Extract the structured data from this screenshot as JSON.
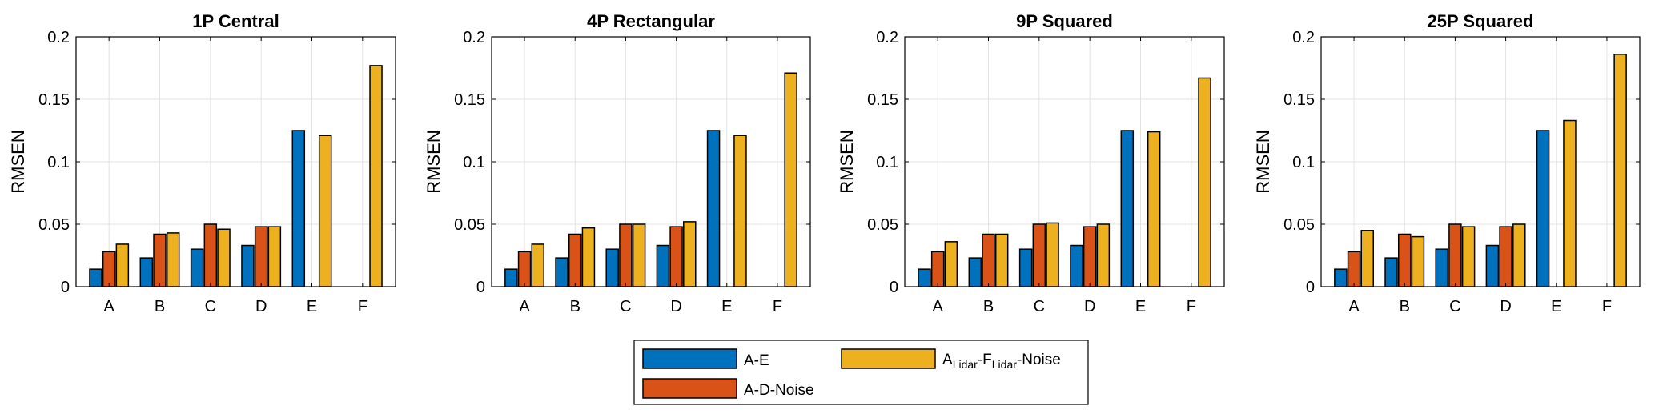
{
  "legend": {
    "label_1": "A-E",
    "label_2": "A-D-Noise",
    "label_3_main_a": "A",
    "label_3_sub_a": "Lidar",
    "label_3_main_b": "-F",
    "label_3_sub_b": "Lidar",
    "label_3_main_c": "-Noise"
  },
  "chart_data": [
    {
      "type": "bar",
      "title": "1P Central",
      "categories": [
        "A",
        "B",
        "C",
        "D",
        "E",
        "F"
      ],
      "xlabel": "",
      "ylabel": "RMSEN",
      "ylim": [
        0,
        0.2
      ],
      "yticks": [
        0,
        0.05,
        0.1,
        0.15,
        0.2
      ],
      "ytick_labels": [
        "0",
        "0.05",
        "0.1",
        "0.15",
        "0.2"
      ],
      "grid": true,
      "series": [
        {
          "name": "A-E",
          "color": "#0072BD",
          "values": [
            0.014,
            0.023,
            0.03,
            0.033,
            0.125,
            null
          ]
        },
        {
          "name": "A-D-Noise",
          "color": "#D95319",
          "values": [
            0.028,
            0.042,
            0.05,
            0.048,
            null,
            null
          ]
        },
        {
          "name": "A_Lidar-F_Lidar-Noise",
          "color": "#EDB120",
          "values": [
            0.034,
            0.043,
            0.046,
            0.048,
            0.121,
            0.177
          ]
        }
      ]
    },
    {
      "type": "bar",
      "title": "4P Rectangular",
      "categories": [
        "A",
        "B",
        "C",
        "D",
        "E",
        "F"
      ],
      "xlabel": "",
      "ylabel": "RMSEN",
      "ylim": [
        0,
        0.2
      ],
      "yticks": [
        0,
        0.05,
        0.1,
        0.15,
        0.2
      ],
      "ytick_labels": [
        "0",
        "0.05",
        "0.1",
        "0.15",
        "0.2"
      ],
      "grid": true,
      "series": [
        {
          "name": "A-E",
          "color": "#0072BD",
          "values": [
            0.014,
            0.023,
            0.03,
            0.033,
            0.125,
            null
          ]
        },
        {
          "name": "A-D-Noise",
          "color": "#D95319",
          "values": [
            0.028,
            0.042,
            0.05,
            0.048,
            null,
            null
          ]
        },
        {
          "name": "A_Lidar-F_Lidar-Noise",
          "color": "#EDB120",
          "values": [
            0.034,
            0.047,
            0.05,
            0.052,
            0.121,
            0.171
          ]
        }
      ]
    },
    {
      "type": "bar",
      "title": "9P Squared",
      "categories": [
        "A",
        "B",
        "C",
        "D",
        "E",
        "F"
      ],
      "xlabel": "",
      "ylabel": "RMSEN",
      "ylim": [
        0,
        0.2
      ],
      "yticks": [
        0,
        0.05,
        0.1,
        0.15,
        0.2
      ],
      "ytick_labels": [
        "0",
        "0.05",
        "0.1",
        "0.15",
        "0.2"
      ],
      "grid": true,
      "series": [
        {
          "name": "A-E",
          "color": "#0072BD",
          "values": [
            0.014,
            0.023,
            0.03,
            0.033,
            0.125,
            null
          ]
        },
        {
          "name": "A-D-Noise",
          "color": "#D95319",
          "values": [
            0.028,
            0.042,
            0.05,
            0.048,
            null,
            null
          ]
        },
        {
          "name": "A_Lidar-F_Lidar-Noise",
          "color": "#EDB120",
          "values": [
            0.036,
            0.042,
            0.051,
            0.05,
            0.124,
            0.167
          ]
        }
      ]
    },
    {
      "type": "bar",
      "title": "25P Squared",
      "categories": [
        "A",
        "B",
        "C",
        "D",
        "E",
        "F"
      ],
      "xlabel": "",
      "ylabel": "RMSEN",
      "ylim": [
        0,
        0.2
      ],
      "yticks": [
        0,
        0.05,
        0.1,
        0.15,
        0.2
      ],
      "ytick_labels": [
        "0",
        "0.05",
        "0.1",
        "0.15",
        "0.2"
      ],
      "grid": true,
      "series": [
        {
          "name": "A-E",
          "color": "#0072BD",
          "values": [
            0.014,
            0.023,
            0.03,
            0.033,
            0.125,
            null
          ]
        },
        {
          "name": "A-D-Noise",
          "color": "#D95319",
          "values": [
            0.028,
            0.042,
            0.05,
            0.048,
            null,
            null
          ]
        },
        {
          "name": "A_Lidar-F_Lidar-Noise",
          "color": "#EDB120",
          "values": [
            0.045,
            0.04,
            0.048,
            0.05,
            0.133,
            0.186
          ]
        }
      ]
    }
  ]
}
